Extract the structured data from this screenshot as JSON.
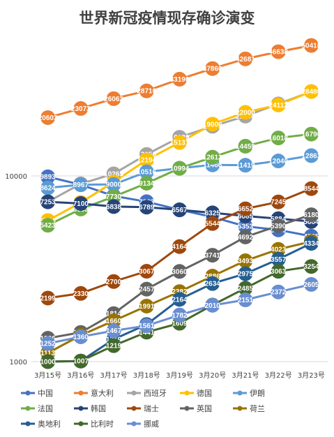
{
  "chart_data": {
    "type": "line",
    "title": "世界新冠疫情现存确诊演变",
    "xlabel": "",
    "ylabel": "",
    "scale": "log",
    "ylim": [
      1000,
      60000
    ],
    "yticks": [
      1000,
      10000
    ],
    "grid": "horizontal",
    "legend": "bottom",
    "categories": [
      "3月15号",
      "3月16号",
      "3月17号",
      "3月18号",
      "3月19号",
      "3月20号",
      "3月21号",
      "3月22号",
      "3月23号"
    ],
    "series": [
      {
        "name": "中国",
        "color": "#4472C4",
        "values": [
          9893,
          8967,
          7800,
          7263,
          6569,
          6013,
          5353,
          5120,
          4735
        ]
      },
      {
        "name": "意大利",
        "color": "#ED7D31",
        "values": [
          20603,
          23073,
          26062,
          28710,
          33190,
          37860,
          42681,
          46638,
          50418
        ]
      },
      {
        "name": "西班牙",
        "color": "#A5A5A5",
        "values": [
          7253,
          9070,
          10265,
          13050,
          16139,
          18500,
          21000,
          24413,
          28474
        ]
      },
      {
        "name": "德国",
        "color": "#FFC000",
        "values": [
          5754,
          7188,
          9274,
          12194,
          15131,
          19000,
          22000,
          24112,
          28480
        ]
      },
      {
        "name": "伊朗",
        "color": "#5B9BD5",
        "values": [
          8624,
          8967,
          9000,
          10516,
          10994,
          11466,
          11419,
          12040,
          12863
        ]
      },
      {
        "name": "法国",
        "color": "#70AD47",
        "values": [
          5423,
          6633,
          7730,
          9134,
          10994,
          12612,
          14459,
          16018,
          16796
        ]
      },
      {
        "name": "韩国",
        "color": "#264478",
        "values": [
          7253,
          7100,
          6838,
          6789,
          6567,
          6325,
          6085,
          5884,
          5684
        ]
      },
      {
        "name": "瑞士",
        "color": "#9E480E",
        "values": [
          2199,
          2330,
          2700,
          3067,
          4164,
          5544,
          6652,
          7245,
          8544
        ]
      },
      {
        "name": "英国",
        "color": "#636363",
        "values": [
          1336,
          1436,
          1814,
          2457,
          3060,
          3741,
          4692,
          5390,
          6180
        ]
      },
      {
        "name": "荷兰",
        "color": "#997300",
        "values": [
          1113,
          1385,
          1660,
          1991,
          2382,
          2886,
          3493,
          4023,
          4435
        ]
      },
      {
        "name": "奥地利",
        "color": "#255E91",
        "values": [
          1000,
          1007,
          1319,
          1584,
          2164,
          2634,
          2975,
          3557,
          4334
        ]
      },
      {
        "name": "比利时",
        "color": "#43682B",
        "values": [
          1000,
          1007,
          1219,
          1441,
          1609,
          2016,
          2485,
          3063,
          3254
        ]
      },
      {
        "name": "挪威",
        "color": "#698ED0",
        "values": [
          1252,
          1360,
          1467,
          1561,
          1782,
          2010,
          2151,
          2372,
          2605
        ]
      }
    ]
  }
}
